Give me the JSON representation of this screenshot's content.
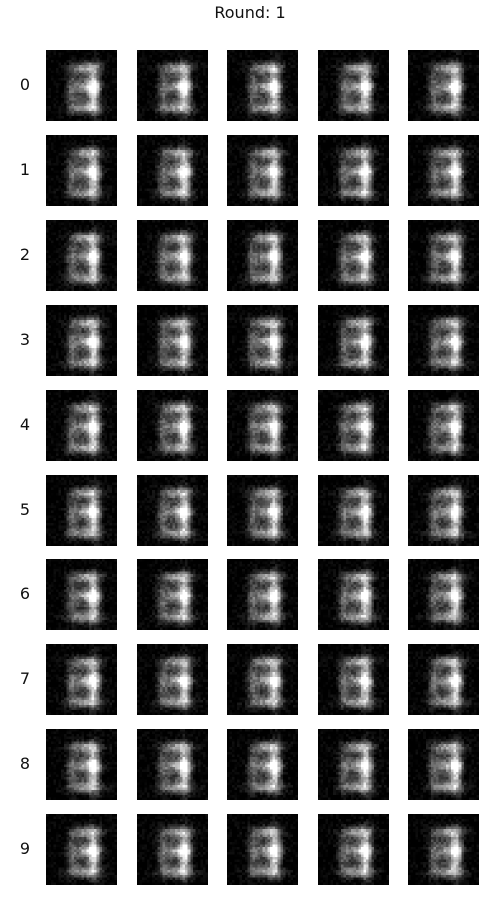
{
  "figure": {
    "title": "Round: 1",
    "row_labels": [
      "0",
      "1",
      "2",
      "3",
      "4",
      "5",
      "6",
      "7",
      "8",
      "9"
    ],
    "columns": 5,
    "image_content": "blurry grayscale digit resembling a 3/8 on black background",
    "colors": {
      "background": "#ffffff",
      "tile_background": "#050505",
      "text": "#111111"
    }
  }
}
